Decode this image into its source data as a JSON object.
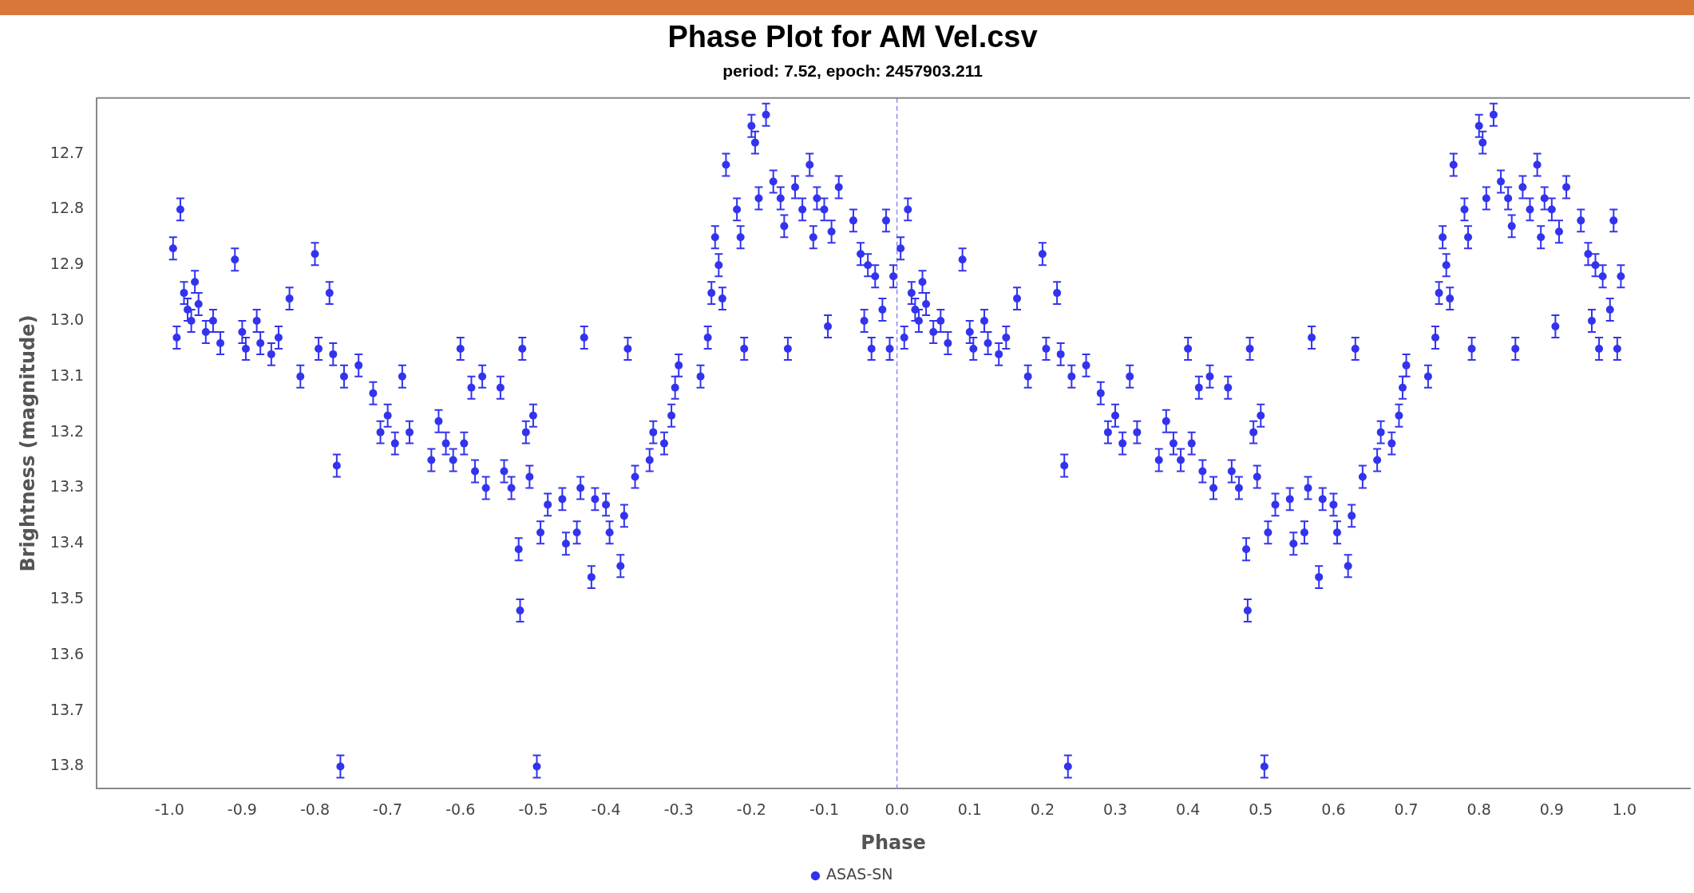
{
  "chart_data": {
    "type": "scatter",
    "title": "Phase Plot for AM Vel.csv",
    "subtitle": "period: 7.52, epoch: 2457903.211",
    "xlabel": "Phase",
    "ylabel": "Brightness (magnitude)",
    "xlim": [
      -1.1,
      1.09
    ],
    "ylim": [
      13.84,
      12.6
    ],
    "xticks": [
      {
        "value": -1,
        "label": "-1.0"
      },
      {
        "value": -0.9,
        "label": "-0.9"
      },
      {
        "value": -0.8,
        "label": "-0.8"
      },
      {
        "value": -0.7,
        "label": "-0.7"
      },
      {
        "value": -0.6,
        "label": "-0.6"
      },
      {
        "value": -0.5,
        "label": "-0.5"
      },
      {
        "value": -0.4,
        "label": "-0.4"
      },
      {
        "value": -0.3,
        "label": "-0.3"
      },
      {
        "value": -0.2,
        "label": "-0.2"
      },
      {
        "value": -0.1,
        "label": "-0.1"
      },
      {
        "value": 0,
        "label": "0.0"
      },
      {
        "value": 0.1,
        "label": "0.1"
      },
      {
        "value": 0.2,
        "label": "0.2"
      },
      {
        "value": 0.3,
        "label": "0.3"
      },
      {
        "value": 0.4,
        "label": "0.4"
      },
      {
        "value": 0.5,
        "label": "0.5"
      },
      {
        "value": 0.6,
        "label": "0.6"
      },
      {
        "value": 0.7,
        "label": "0.7"
      },
      {
        "value": 0.8,
        "label": "0.8"
      },
      {
        "value": 0.9,
        "label": "0.9"
      },
      {
        "value": 1,
        "label": "1.0"
      }
    ],
    "yticks": [
      12.7,
      12.8,
      12.9,
      {
        "value": 13,
        "label": "13.0"
      },
      13.1,
      13.2,
      13.3,
      13.4,
      13.5,
      13.6,
      13.7,
      13.8
    ],
    "ref_lines": [
      {
        "axis": "x",
        "value": 0,
        "line_style": "dashed",
        "color": "#8888ee"
      }
    ],
    "legend": "bottom",
    "grid": false,
    "marker": "circle",
    "series": [
      {
        "name": "ASAS-SN",
        "color": "#3333ee",
        "x": [
          0.005,
          0.01,
          0.015,
          0.02,
          0.025,
          0.03,
          0.035,
          0.04,
          0.05,
          0.06,
          0.07,
          0.09,
          0.1,
          0.105,
          0.12,
          0.125,
          0.14,
          0.15,
          0.165,
          0.18,
          0.2,
          0.205,
          0.22,
          0.225,
          0.23,
          0.235,
          0.24,
          0.26,
          0.28,
          0.29,
          0.3,
          0.31,
          0.32,
          0.33,
          0.36,
          0.37,
          0.38,
          0.39,
          0.4,
          0.405,
          0.415,
          0.42,
          0.43,
          0.435,
          0.455,
          0.46,
          0.47,
          0.48,
          0.482,
          0.485,
          0.49,
          0.495,
          0.5,
          0.505,
          0.51,
          0.52,
          0.54,
          0.545,
          0.56,
          0.565,
          0.57,
          0.58,
          0.585,
          0.6,
          0.605,
          0.62,
          0.625,
          0.63,
          0.64,
          0.66,
          0.665,
          0.68,
          0.69,
          0.695,
          0.7,
          0.73,
          0.74,
          0.745,
          0.75,
          0.755,
          0.76,
          0.765,
          0.78,
          0.785,
          0.79,
          0.8,
          0.805,
          0.81,
          0.82,
          0.83,
          0.84,
          0.845,
          0.85,
          0.86,
          0.87,
          0.88,
          0.885,
          0.89,
          0.9,
          0.905,
          0.91,
          0.92,
          0.94,
          0.95,
          0.955,
          0.96,
          0.965,
          0.97,
          0.98,
          0.985,
          0.99,
          0.995,
          -0.995,
          -0.99,
          -0.985,
          -0.98,
          -0.975,
          -0.97,
          -0.965,
          -0.96,
          -0.95,
          -0.94,
          -0.93,
          -0.91,
          -0.9,
          -0.895,
          -0.88,
          -0.875,
          -0.86,
          -0.85,
          -0.835,
          -0.82,
          -0.8,
          -0.795,
          -0.78,
          -0.775,
          -0.77,
          -0.765,
          -0.76,
          -0.74,
          -0.72,
          -0.71,
          -0.7,
          -0.69,
          -0.68,
          -0.67,
          -0.64,
          -0.63,
          -0.62,
          -0.61,
          -0.6,
          -0.595,
          -0.585,
          -0.58,
          -0.57,
          -0.565,
          -0.545,
          -0.54,
          -0.53,
          -0.52,
          -0.518,
          -0.515,
          -0.51,
          -0.505,
          -0.5,
          -0.495,
          -0.49,
          -0.48,
          -0.46,
          -0.455,
          -0.44,
          -0.435,
          -0.43,
          -0.42,
          -0.415,
          -0.4,
          -0.395,
          -0.38,
          -0.375,
          -0.37,
          -0.36,
          -0.34,
          -0.335,
          -0.32,
          -0.31,
          -0.305,
          -0.3,
          -0.27,
          -0.26,
          -0.255,
          -0.25,
          -0.245,
          -0.24,
          -0.235,
          -0.22,
          -0.215,
          -0.21,
          -0.2,
          -0.195,
          -0.19,
          -0.18,
          -0.17,
          -0.16,
          -0.155,
          -0.15,
          -0.14,
          -0.13,
          -0.12,
          -0.115,
          -0.11,
          -0.1,
          -0.095,
          -0.09,
          -0.08,
          -0.06,
          -0.05,
          -0.045,
          -0.04,
          -0.035,
          -0.03,
          -0.02,
          -0.015,
          -0.01,
          -0.005
        ],
        "values": [
          12.87,
          13.03,
          12.8,
          12.95,
          12.98,
          13.0,
          12.93,
          12.97,
          13.02,
          13.0,
          13.04,
          12.89,
          13.02,
          13.05,
          13.0,
          13.04,
          13.06,
          13.03,
          12.96,
          13.1,
          12.88,
          13.05,
          12.95,
          13.06,
          13.26,
          13.8,
          13.1,
          13.08,
          13.13,
          13.2,
          13.17,
          13.22,
          13.1,
          13.2,
          13.25,
          13.18,
          13.22,
          13.25,
          13.05,
          13.22,
          13.12,
          13.27,
          13.1,
          13.3,
          13.12,
          13.27,
          13.3,
          13.41,
          13.52,
          13.05,
          13.2,
          13.28,
          13.17,
          13.8,
          13.38,
          13.33,
          13.32,
          13.4,
          13.38,
          13.3,
          13.03,
          13.46,
          13.32,
          13.33,
          13.38,
          13.44,
          13.35,
          13.05,
          13.28,
          13.25,
          13.2,
          13.22,
          13.17,
          13.12,
          13.08,
          13.1,
          13.03,
          12.95,
          12.85,
          12.9,
          12.96,
          12.72,
          12.8,
          12.85,
          13.05,
          12.65,
          12.68,
          12.78,
          12.63,
          12.75,
          12.78,
          12.83,
          13.05,
          12.76,
          12.8,
          12.72,
          12.85,
          12.78,
          12.8,
          13.01,
          12.84,
          12.76,
          12.82,
          12.88,
          13.0,
          12.9,
          13.05,
          12.92,
          12.98,
          12.82,
          13.05,
          12.92,
          12.87,
          13.03,
          12.8,
          12.95,
          12.98,
          13.0,
          12.93,
          12.97,
          13.02,
          13.0,
          13.04,
          12.89,
          13.02,
          13.05,
          13.0,
          13.04,
          13.06,
          13.03,
          12.96,
          13.1,
          12.88,
          13.05,
          12.95,
          13.06,
          13.26,
          13.8,
          13.1,
          13.08,
          13.13,
          13.2,
          13.17,
          13.22,
          13.1,
          13.2,
          13.25,
          13.18,
          13.22,
          13.25,
          13.05,
          13.22,
          13.12,
          13.27,
          13.1,
          13.3,
          13.12,
          13.27,
          13.3,
          13.41,
          13.52,
          13.05,
          13.2,
          13.28,
          13.17,
          13.8,
          13.38,
          13.33,
          13.32,
          13.4,
          13.38,
          13.3,
          13.03,
          13.46,
          13.32,
          13.33,
          13.38,
          13.44,
          13.35,
          13.05,
          13.28,
          13.25,
          13.2,
          13.22,
          13.17,
          13.12,
          13.08,
          13.1,
          13.03,
          12.95,
          12.85,
          12.9,
          12.96,
          12.72,
          12.8,
          12.85,
          13.05,
          12.65,
          12.68,
          12.78,
          12.63,
          12.75,
          12.78,
          12.83,
          13.05,
          12.76,
          12.8,
          12.72,
          12.85,
          12.78,
          12.8,
          13.01,
          12.84,
          12.76,
          12.82,
          12.88,
          13.0,
          12.9,
          13.05,
          12.92,
          12.98,
          12.82,
          13.05,
          12.92
        ],
        "errors": [
          0.02,
          0.02,
          0.02,
          0.02,
          0.02,
          0.02,
          0.02,
          0.02,
          0.02,
          0.02,
          0.02,
          0.02,
          0.02,
          0.02,
          0.02,
          0.02,
          0.02,
          0.02,
          0.02,
          0.02,
          0.02,
          0.02,
          0.02,
          0.02,
          0.02,
          0.02,
          0.02,
          0.02,
          0.02,
          0.02,
          0.02,
          0.02,
          0.02,
          0.02,
          0.02,
          0.02,
          0.02,
          0.02,
          0.02,
          0.02,
          0.02,
          0.02,
          0.02,
          0.02,
          0.02,
          0.02,
          0.02,
          0.02,
          0.02,
          0.02,
          0.02,
          0.02,
          0.02,
          0.02,
          0.02,
          0.02,
          0.02,
          0.02,
          0.02,
          0.02,
          0.02,
          0.02,
          0.02,
          0.02,
          0.02,
          0.02,
          0.02,
          0.02,
          0.02,
          0.02,
          0.02,
          0.02,
          0.02,
          0.02,
          0.02,
          0.02,
          0.02,
          0.02,
          0.02,
          0.02,
          0.02,
          0.02,
          0.02,
          0.02,
          0.02,
          0.02,
          0.02,
          0.02,
          0.02,
          0.02,
          0.02,
          0.02,
          0.02,
          0.02,
          0.02,
          0.02,
          0.02,
          0.02,
          0.02,
          0.02,
          0.02,
          0.02,
          0.02,
          0.02,
          0.02,
          0.02,
          0.02,
          0.02,
          0.02,
          0.02,
          0.02,
          0.02,
          0.02,
          0.02,
          0.02,
          0.02,
          0.02,
          0.02,
          0.02,
          0.02,
          0.02,
          0.02,
          0.02,
          0.02,
          0.02,
          0.02,
          0.02,
          0.02,
          0.02,
          0.02,
          0.02,
          0.02,
          0.02,
          0.02,
          0.02,
          0.02,
          0.02,
          0.02,
          0.02,
          0.02,
          0.02,
          0.02,
          0.02,
          0.02,
          0.02,
          0.02,
          0.02,
          0.02,
          0.02,
          0.02,
          0.02,
          0.02,
          0.02,
          0.02,
          0.02,
          0.02,
          0.02,
          0.02,
          0.02,
          0.02,
          0.02,
          0.02,
          0.02,
          0.02,
          0.02,
          0.02,
          0.02,
          0.02,
          0.02,
          0.02,
          0.02,
          0.02,
          0.02,
          0.02,
          0.02,
          0.02,
          0.02,
          0.02,
          0.02,
          0.02,
          0.02,
          0.02,
          0.02,
          0.02,
          0.02,
          0.02,
          0.02,
          0.02,
          0.02,
          0.02,
          0.02,
          0.02,
          0.02,
          0.02,
          0.02,
          0.02,
          0.02,
          0.02,
          0.02,
          0.02,
          0.02,
          0.02,
          0.02,
          0.02,
          0.02,
          0.02,
          0.02,
          0.02,
          0.02,
          0.02,
          0.02,
          0.02,
          0.02,
          0.02,
          0.02,
          0.02,
          0.02,
          0.02,
          0.02,
          0.02,
          0.02,
          0.02,
          0.02,
          0.02
        ]
      }
    ]
  }
}
